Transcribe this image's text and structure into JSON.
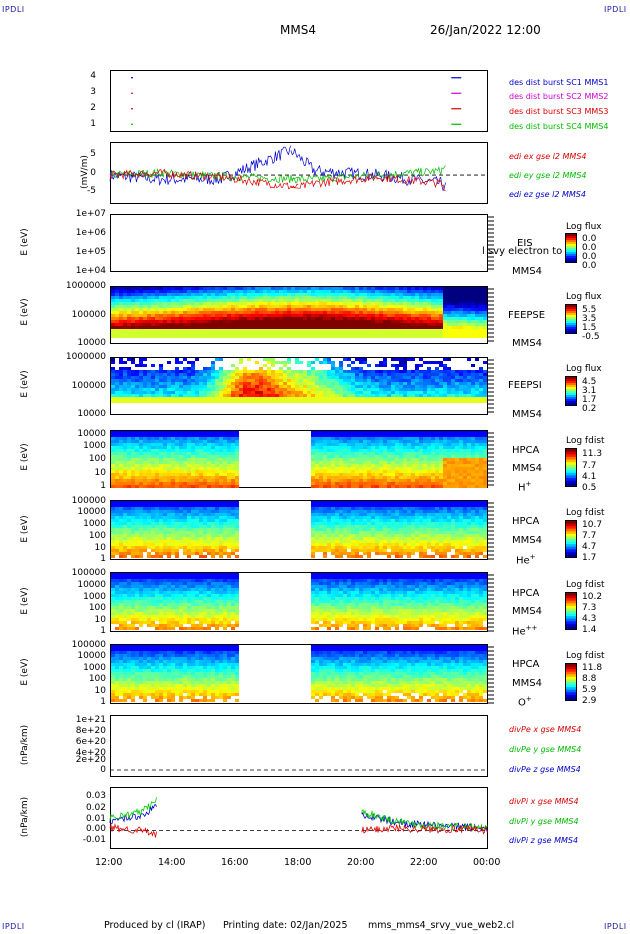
{
  "corner_labels": {
    "tl": "IPDLI",
    "tr": "IPDLI",
    "bl": "IPDLI",
    "br": "IPDLI"
  },
  "header": {
    "spacecraft": "MMS4",
    "date": "26/Jan/2022 12:00"
  },
  "footer": {
    "produced": "Produced by cl (IRAP)",
    "printing": "Printing date: 02/Jan/2025",
    "script": "mms_mms4_srvy_vue_web2.cl"
  },
  "xaxis": {
    "ticks": [
      "12:00",
      "14:00",
      "16:00",
      "18:00",
      "20:00",
      "22:00",
      "00:00"
    ]
  },
  "colors": {
    "red": "#dd0000",
    "green": "#00cc00",
    "blue": "#0000cc",
    "magenta": "#cc00cc"
  },
  "panels": {
    "p1": {
      "ticks": [
        "4",
        "3",
        "2",
        "1"
      ],
      "legend": [
        "des dist burst SC1 MMS1",
        "des dist burst SC2 MMS2",
        "des dist burst SC3 MMS3",
        "des dist burst SC4 MMS4"
      ]
    },
    "p2": {
      "ylabel": "(mV/m)",
      "ticks": [
        "5",
        "0",
        "-5"
      ],
      "legend": [
        "edi ex gse l2 MMS4",
        "edi ey gse l2 MMS4",
        "edi ez gse l2 MMS4"
      ]
    },
    "p3": {
      "ylabel": "E (eV)",
      "ticks": [
        "1e+07",
        "1e+06",
        "1e+05",
        "1e+04"
      ],
      "inst": "EIS",
      "overflow": "l svy electron to",
      "sc": "MMS4",
      "cb_title": "Log flux",
      "cb_ticks": [
        "0.0",
        "0.0",
        "0.0",
        "0.0"
      ]
    },
    "p4": {
      "ylabel": "E (eV)",
      "ticks": [
        "1000000",
        "100000",
        "10000"
      ],
      "inst": "FEEPSE",
      "sc": "MMS4",
      "cb_title": "Log flux",
      "cb_ticks": [
        "5.5",
        "3.5",
        "1.5",
        "-0.5"
      ]
    },
    "p5": {
      "ylabel": "E (eV)",
      "ticks": [
        "1000000",
        "100000",
        "10000"
      ],
      "inst": "FEEPSI",
      "sc": "MMS4",
      "cb_title": "Log flux",
      "cb_ticks": [
        "4.5",
        "3.1",
        "1.7",
        "0.2"
      ]
    },
    "p6": {
      "ylabel": "E (eV)",
      "ticks": [
        "10000",
        "1000",
        "100",
        "10",
        "1"
      ],
      "inst": "HPCA",
      "sc": "MMS4",
      "species": "H",
      "charge": "+",
      "cb_title": "Log fdist",
      "cb_ticks": [
        "11.3",
        "7.7",
        "4.1",
        "0.5"
      ]
    },
    "p7": {
      "ylabel": "E (eV)",
      "ticks": [
        "100000",
        "10000",
        "1000",
        "100",
        "10",
        "1"
      ],
      "inst": "HPCA",
      "sc": "MMS4",
      "species": "He",
      "charge": "+",
      "cb_title": "Log fdist",
      "cb_ticks": [
        "10.7",
        "7.7",
        "4.7",
        "1.7"
      ]
    },
    "p8": {
      "ylabel": "E (eV)",
      "ticks": [
        "100000",
        "10000",
        "1000",
        "100",
        "10",
        "1"
      ],
      "inst": "HPCA",
      "sc": "MMS4",
      "species": "He",
      "charge": "++",
      "cb_title": "Log fdist",
      "cb_ticks": [
        "10.2",
        "7.3",
        "4.3",
        "1.4"
      ]
    },
    "p9": {
      "ylabel": "E (eV)",
      "ticks": [
        "100000",
        "10000",
        "1000",
        "100",
        "10",
        "1"
      ],
      "inst": "HPCA",
      "sc": "MMS4",
      "species": "O",
      "charge": "+",
      "cb_title": "Log fdist",
      "cb_ticks": [
        "11.8",
        "8.8",
        "5.9",
        "2.9"
      ]
    },
    "p10": {
      "ylabel": "(nPa/km)",
      "ticks": [
        "1e+21",
        "8e+20",
        "6e+20",
        "4e+20",
        "2e+20",
        "0"
      ],
      "legend": [
        "divPe x gse MMS4",
        "divPe y gse MMS4",
        "divPe z gse MMS4"
      ]
    },
    "p11": {
      "ylabel": "(nPa/km)",
      "ticks": [
        "0.03",
        "0.02",
        "0.01",
        "0.00",
        "-0.01"
      ],
      "legend": [
        "divPi x gse MMS4",
        "divPi y gse MMS4",
        "divPi z gse MMS4"
      ]
    }
  },
  "chart_data": [
    {
      "type": "scatter",
      "title": "des dist burst",
      "ylim": [
        0.5,
        4.5
      ],
      "series": [
        {
          "name": "des dist burst SC1 MMS1",
          "x": [
            "12:40",
            "22:50"
          ],
          "values": [
            4,
            4
          ]
        },
        {
          "name": "des dist burst SC2 MMS2",
          "x": [
            "12:40",
            "22:50"
          ],
          "values": [
            3,
            3
          ]
        },
        {
          "name": "des dist burst SC3 MMS3",
          "x": [
            "12:40",
            "22:50"
          ],
          "values": [
            2,
            2
          ]
        },
        {
          "name": "des dist burst SC4 MMS4",
          "x": [
            "12:40",
            "22:50"
          ],
          "values": [
            1,
            1
          ]
        }
      ]
    },
    {
      "type": "line",
      "ylabel": "(mV/m)",
      "ylim": [
        -7,
        8
      ],
      "series": [
        {
          "name": "edi ex gse l2 MMS4",
          "x": [
            "12:00",
            "13:30",
            "15:30",
            "18:00",
            "18:30",
            "20:30",
            "22:30",
            "22:40"
          ],
          "values": [
            0,
            0.5,
            -0.5,
            -3,
            -2,
            -0.5,
            -2,
            -4
          ]
        },
        {
          "name": "edi ey gse l2 MMS4",
          "x": [
            "12:00",
            "13:30",
            "15:30",
            "18:00",
            "18:30",
            "20:30",
            "22:30",
            "22:40"
          ],
          "values": [
            0,
            0.5,
            -0.3,
            -1,
            -1,
            0,
            1,
            2
          ]
        },
        {
          "name": "edi ez gse l2 MMS4",
          "x": [
            "12:00",
            "13:30",
            "15:30",
            "17:45",
            "18:30",
            "20:30",
            "22:30",
            "22:40"
          ],
          "values": [
            0,
            -1,
            -1,
            6,
            1,
            0,
            -2,
            -3
          ]
        }
      ]
    },
    {
      "type": "heatmap",
      "ylabel": "E (eV)",
      "instrument": "EIS",
      "note": "empty"
    },
    {
      "type": "heatmap",
      "ylabel": "E (eV)",
      "instrument": "FEEPSE",
      "ylim": [
        10000,
        1000000
      ]
    },
    {
      "type": "heatmap",
      "ylabel": "E (eV)",
      "instrument": "FEEPSI",
      "ylim": [
        10000,
        1000000
      ]
    },
    {
      "type": "heatmap",
      "ylabel": "E (eV)",
      "instrument": "HPCA H+",
      "data_gap": [
        "16:00",
        "18:20"
      ]
    },
    {
      "type": "heatmap",
      "ylabel": "E (eV)",
      "instrument": "HPCA He+",
      "data_gap": [
        "16:00",
        "18:20"
      ]
    },
    {
      "type": "heatmap",
      "ylabel": "E (eV)",
      "instrument": "HPCA He++",
      "data_gap": [
        "16:00",
        "18:20"
      ]
    },
    {
      "type": "heatmap",
      "ylabel": "E (eV)",
      "instrument": "HPCA O+",
      "data_gap": [
        "16:00",
        "18:20"
      ]
    },
    {
      "type": "line",
      "ylabel": "(nPa/km)",
      "ylim": [
        0,
        1e+21
      ],
      "series": [
        {
          "name": "divPe x gse MMS4",
          "x": [],
          "values": []
        },
        {
          "name": "divPe y gse MMS4",
          "x": [],
          "values": []
        },
        {
          "name": "divPe z gse MMS4",
          "x": [],
          "values": []
        }
      ]
    },
    {
      "type": "line",
      "ylabel": "(nPa/km)",
      "ylim": [
        -0.015,
        0.035
      ],
      "series": [
        {
          "name": "divPi x gse MMS4",
          "x": [
            "12:00",
            "13:00",
            "13:30",
            "20:00",
            "21:00",
            "22:00",
            "23:00",
            "00:00"
          ],
          "values": [
            0.002,
            0.0,
            -0.004,
            0.0,
            0.002,
            0.001,
            0.001,
            0.0
          ]
        },
        {
          "name": "divPi y gse MMS4",
          "x": [
            "12:00",
            "13:00",
            "13:30",
            "20:00",
            "21:00",
            "22:00",
            "23:00",
            "00:00"
          ],
          "values": [
            0.01,
            0.015,
            0.025,
            0.015,
            0.008,
            0.004,
            0.003,
            0.002
          ]
        },
        {
          "name": "divPi z gse MMS4",
          "x": [
            "12:00",
            "13:00",
            "13:30",
            "20:00",
            "21:00",
            "22:00",
            "23:00",
            "00:00"
          ],
          "values": [
            0.008,
            0.012,
            0.02,
            0.013,
            0.007,
            0.004,
            0.003,
            0.002
          ]
        }
      ]
    }
  ]
}
